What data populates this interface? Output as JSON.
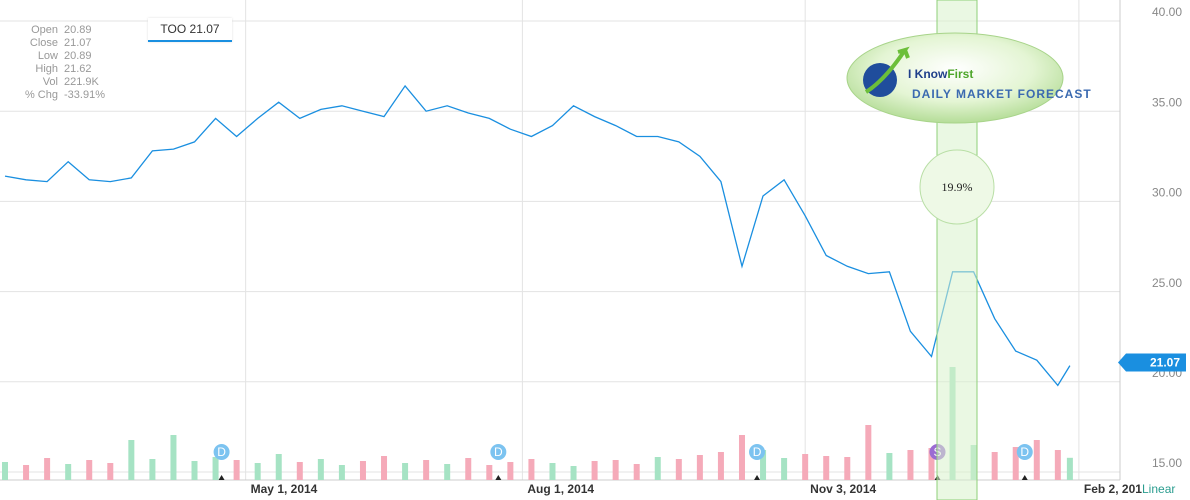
{
  "ohlc_panel": [
    {
      "label": "Open",
      "value": "20.89"
    },
    {
      "label": "Close",
      "value": "21.07"
    },
    {
      "label": "Low",
      "value": "20.89"
    },
    {
      "label": "High",
      "value": "21.62"
    },
    {
      "label": "Vol",
      "value": "221.9K"
    },
    {
      "label": "% Chg",
      "value": "-33.91%"
    }
  ],
  "legend_label": "TOO 21.07",
  "overlay": {
    "logo_part1": "I Know",
    "logo_part2": "First",
    "logo_subtitle": "DAILY MARKET FORECAST",
    "forecast_label": "19.9%"
  },
  "chart_data": {
    "type": "line",
    "color": "#1a8fe0",
    "x": [
      "2014-02-10",
      "2014-02-17",
      "2014-02-24",
      "2014-03-03",
      "2014-03-10",
      "2014-03-17",
      "2014-03-24",
      "2014-03-31",
      "2014-04-07",
      "2014-04-14",
      "2014-04-21",
      "2014-04-28",
      "2014-05-05",
      "2014-05-12",
      "2014-05-19",
      "2014-05-26",
      "2014-06-02",
      "2014-06-09",
      "2014-06-16",
      "2014-06-23",
      "2014-06-30",
      "2014-07-07",
      "2014-07-14",
      "2014-07-21",
      "2014-07-28",
      "2014-08-04",
      "2014-08-11",
      "2014-08-18",
      "2014-08-25",
      "2014-09-01",
      "2014-09-08",
      "2014-09-15",
      "2014-09-22",
      "2014-09-29",
      "2014-10-06",
      "2014-10-13",
      "2014-10-20",
      "2014-10-27",
      "2014-11-03",
      "2014-11-10",
      "2014-11-17",
      "2014-11-24",
      "2014-12-01",
      "2014-12-08",
      "2014-12-15",
      "2014-12-22",
      "2014-12-29",
      "2015-01-05",
      "2015-01-12",
      "2015-01-19",
      "2015-01-26",
      "2015-01-30"
    ],
    "values": [
      31.4,
      31.2,
      31.1,
      32.2,
      31.2,
      31.1,
      31.3,
      32.8,
      32.9,
      33.3,
      34.6,
      33.6,
      34.6,
      35.5,
      34.6,
      35.1,
      35.3,
      35.0,
      34.7,
      36.4,
      35.0,
      35.3,
      34.9,
      34.6,
      34.0,
      33.6,
      34.2,
      35.3,
      34.7,
      34.2,
      33.6,
      33.6,
      33.3,
      32.5,
      31.1,
      26.4,
      30.3,
      31.2,
      29.2,
      27.0,
      26.4,
      26.0,
      26.1,
      22.8,
      21.4,
      26.1,
      26.1,
      23.5,
      21.7,
      21.2,
      19.8,
      20.9
    ],
    "volume": {
      "values": [
        180,
        150,
        220,
        160,
        200,
        170,
        400,
        210,
        450,
        190,
        230,
        200,
        170,
        260,
        180,
        210,
        150,
        190,
        240,
        170,
        200,
        160,
        220,
        150,
        180,
        210,
        170,
        140,
        190,
        200,
        160,
        230,
        210,
        250,
        280,
        450,
        300,
        220,
        260,
        240,
        230,
        550,
        270,
        300,
        320,
        1130,
        350,
        280,
        330,
        400,
        300,
        222
      ],
      "ylim": [
        0,
        1200
      ],
      "up_color": "#a6e3c4",
      "down_color": "#f5aab9"
    },
    "xlim": [
      "2014-02-10",
      "2015-02-14"
    ],
    "xticks": [
      {
        "value": "2014-05-01",
        "label": "May 1, 2014"
      },
      {
        "value": "2014-08-01",
        "label": "Aug 1, 2014"
      },
      {
        "value": "2014-11-03",
        "label": "Nov 3, 2014"
      },
      {
        "value": "2015-02-02",
        "label": "Feb 2, 201"
      }
    ],
    "ylim": [
      15,
      40
    ],
    "yticks": [
      {
        "value": 15,
        "label": "15.00"
      },
      {
        "value": 20,
        "label": "20.00"
      },
      {
        "value": 25,
        "label": "25.00"
      },
      {
        "value": 30,
        "label": "30.00"
      },
      {
        "value": 35,
        "label": "35.00"
      },
      {
        "value": 40,
        "label": "40.00"
      }
    ],
    "grid": true,
    "last_price": 21.07,
    "scale_label": "Linear",
    "events": [
      {
        "date": "2014-04-23",
        "label": "D"
      },
      {
        "date": "2014-07-24",
        "label": "D"
      },
      {
        "date": "2014-10-18",
        "label": "D"
      },
      {
        "date": "2014-12-17",
        "label": "S"
      },
      {
        "date": "2015-01-15",
        "label": "D"
      }
    ]
  }
}
